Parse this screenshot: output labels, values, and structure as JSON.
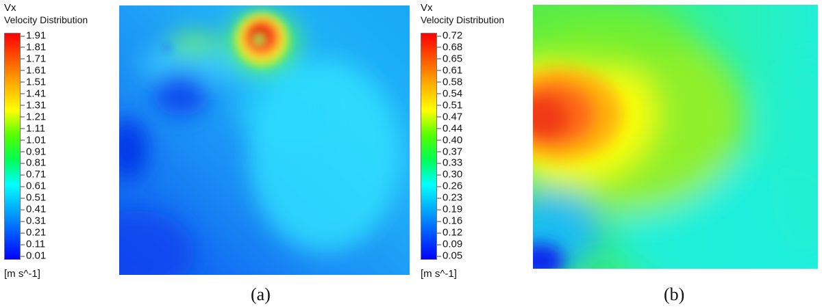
{
  "colormap": [
    "#0000ff",
    "#0055ff",
    "#00aaff",
    "#00ffff",
    "#00ff55",
    "#55ff00",
    "#ffff00",
    "#ffaa00",
    "#ff5500",
    "#ff0000"
  ],
  "panels": [
    {
      "id": "a",
      "legend": {
        "variable": "Vx",
        "subtitle": "Velocity Distribution",
        "unit": "[m s^-1]",
        "ticks": [
          "1.91",
          "1.81",
          "1.71",
          "1.61",
          "1.51",
          "1.41",
          "1.31",
          "1.21",
          "1.11",
          "1.01",
          "0.91",
          "0.81",
          "0.71",
          "0.61",
          "0.51",
          "0.41",
          "0.31",
          "0.21",
          "0.11",
          "0.01"
        ]
      },
      "caption": "(a)"
    },
    {
      "id": "b",
      "legend": {
        "variable": "Vx",
        "subtitle": "Velocity Distribution",
        "unit": "[m s^-1]",
        "ticks": [
          "0.72",
          "0.68",
          "0.65",
          "0.61",
          "0.58",
          "0.54",
          "0.51",
          "0.47",
          "0.44",
          "0.40",
          "0.37",
          "0.33",
          "0.30",
          "0.26",
          "0.23",
          "0.19",
          "0.16",
          "0.12",
          "0.09",
          "0.05"
        ]
      },
      "caption": "(b)"
    }
  ]
}
